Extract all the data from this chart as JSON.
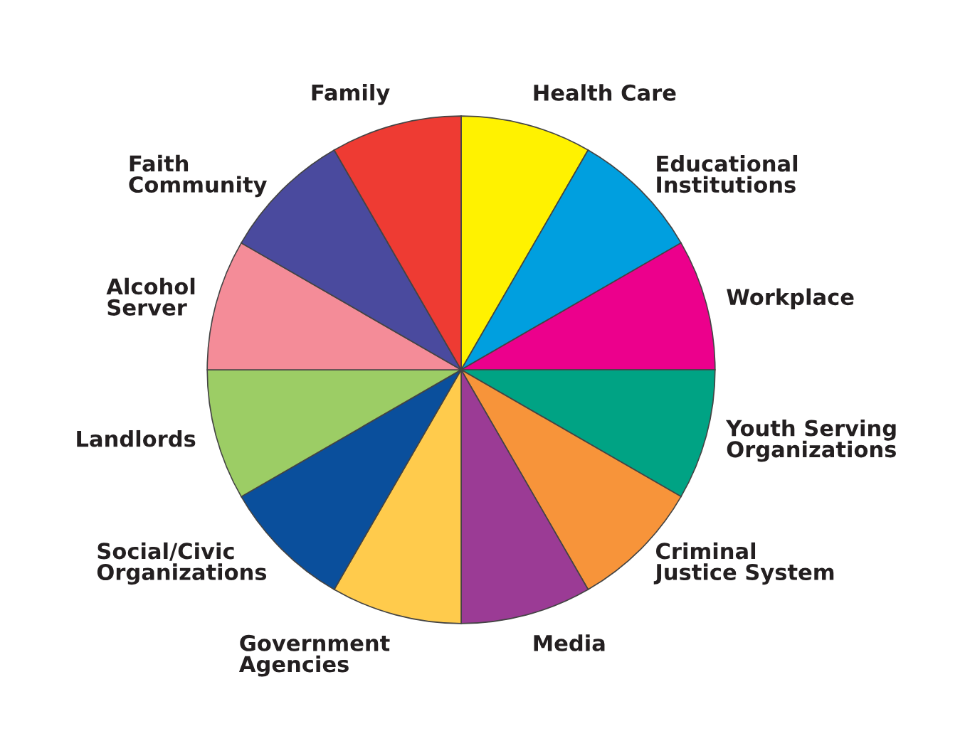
{
  "chart_data": {
    "type": "pie",
    "categories": [
      "Health Care",
      "Educational\nInstitutions",
      "Workplace",
      "Youth Serving\nOrganizations",
      "Criminal\nJustice System",
      "Media",
      "Government\nAgencies",
      "Social/Civic\nOrganizations",
      "Landlords",
      "Alcohol\nServer",
      "Faith\nCommunity",
      "Family"
    ],
    "values": [
      8.333,
      8.333,
      8.333,
      8.333,
      8.333,
      8.333,
      8.333,
      8.333,
      8.333,
      8.333,
      8.333,
      8.333
    ],
    "colors": [
      "#fff200",
      "#009fdf",
      "#ec008c",
      "#00a384",
      "#f7943a",
      "#9b3b95",
      "#ffcb4c",
      "#0a4f9c",
      "#9ccd65",
      "#f48c98",
      "#4a4a9e",
      "#ee3b33"
    ]
  }
}
